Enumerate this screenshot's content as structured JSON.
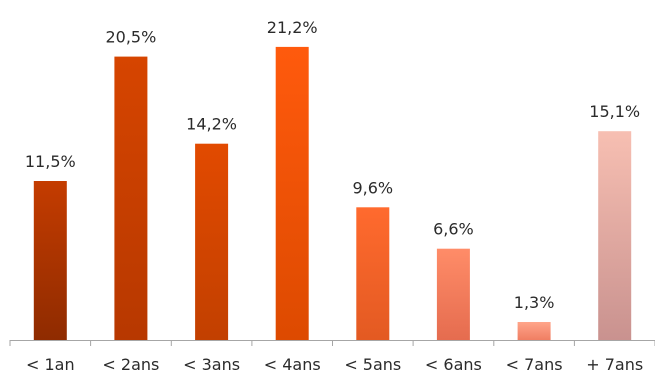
{
  "chart_data": {
    "type": "bar",
    "title": "",
    "xlabel": "",
    "ylabel": "",
    "categories": [
      "< 1an",
      "< 2ans",
      "< 3ans",
      "< 4ans",
      "< 5ans",
      "< 6ans",
      "< 7ans",
      "+ 7ans"
    ],
    "values": [
      11.5,
      20.5,
      14.2,
      21.2,
      9.6,
      6.6,
      1.3,
      15.1
    ],
    "data_labels": [
      "11,5%",
      "20,5%",
      "14,2%",
      "21,2%",
      "9,6%",
      "6,6%",
      "1,3%",
      "15,1%"
    ],
    "ylim": [
      0,
      23
    ],
    "grid": false,
    "legend": "none",
    "unit": "%",
    "bar_gradients": [
      [
        "#c43c00",
        "#8f2b00"
      ],
      [
        "#d64500",
        "#b73800"
      ],
      [
        "#e24a00",
        "#c24000"
      ],
      [
        "#ff5a0d",
        "#dd4a00"
      ],
      [
        "#ff6a2e",
        "#e35a22"
      ],
      [
        "#ff8c68",
        "#e56c4f"
      ],
      [
        "#ffa58a",
        "#f07e63"
      ],
      [
        "#f7bfb2",
        "#c9928f"
      ]
    ],
    "axis_color": "#a6a6a6"
  }
}
